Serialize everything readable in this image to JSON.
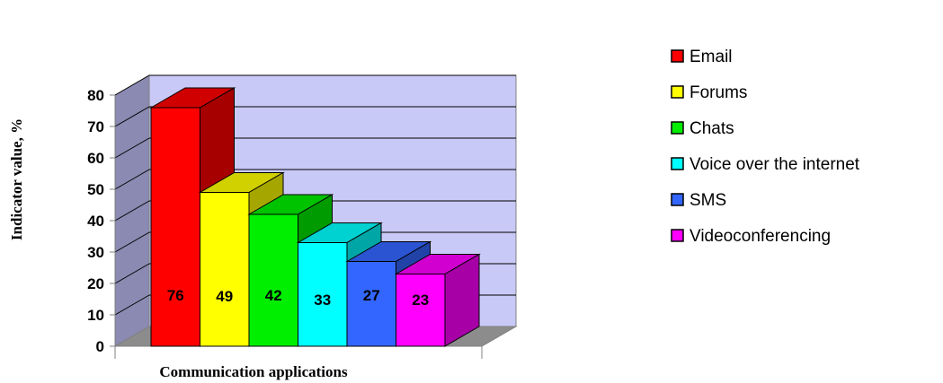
{
  "chart_data": {
    "type": "bar",
    "title": "",
    "xlabel": "Communication applications",
    "ylabel": "Indicator value, %",
    "ylim": [
      0,
      80
    ],
    "yticks": [
      0,
      10,
      20,
      30,
      40,
      50,
      60,
      70,
      80
    ],
    "grid": true,
    "legend_position": "right",
    "categories": [
      "Email",
      "Forums",
      "Chats",
      "Voice over the internet",
      "SMS",
      "Videoconferencing"
    ],
    "values": [
      76,
      49,
      42,
      33,
      27,
      23
    ],
    "colors": [
      "#ff0000",
      "#ffff00",
      "#00ee00",
      "#00ffff",
      "#3366ff",
      "#ff00ff"
    ],
    "data_labels": [
      "76",
      "49",
      "42",
      "33",
      "27",
      "23"
    ]
  }
}
